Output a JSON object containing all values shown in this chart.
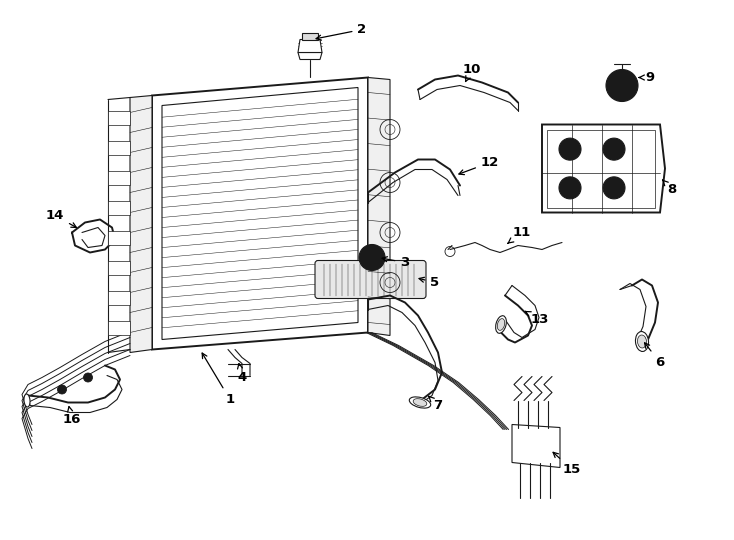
{
  "background_color": "#ffffff",
  "line_color": "#1a1a1a",
  "label_color": "#000000",
  "figsize": [
    7.34,
    5.4
  ],
  "dpi": 100
}
